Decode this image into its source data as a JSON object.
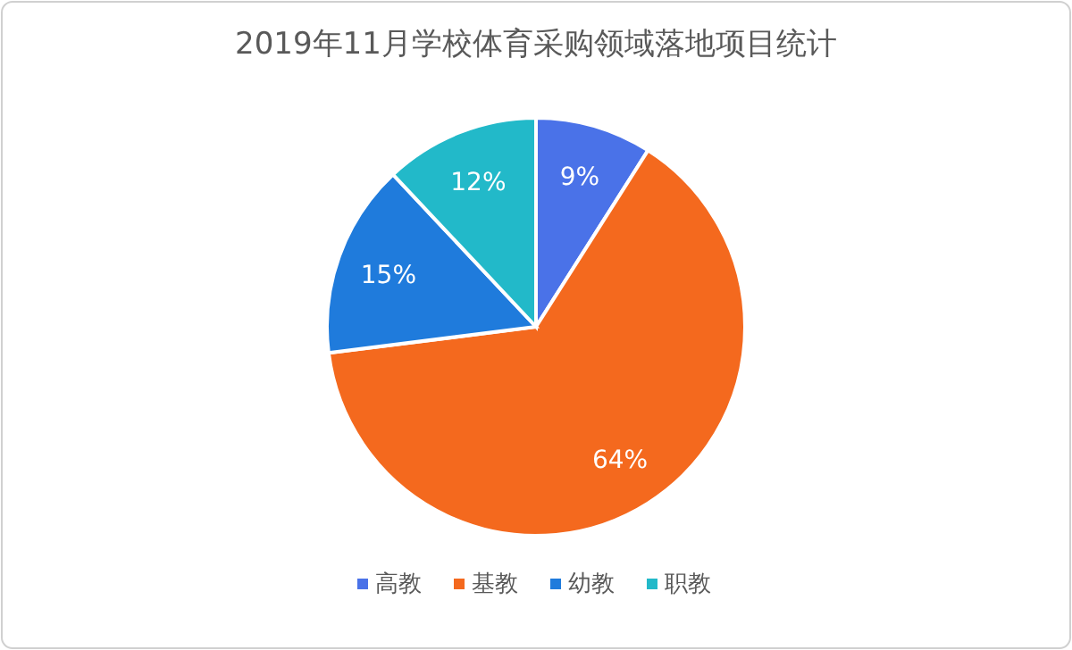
{
  "chart_data": {
    "type": "pie",
    "title": "2019年11月学校体育采购领域落地项目统计",
    "categories": [
      "高教",
      "基教",
      "幼教",
      "职教"
    ],
    "values": [
      9,
      64,
      15,
      12
    ],
    "colors": [
      "#4a72e8",
      "#f4691e",
      "#1f7bdc",
      "#22b9c9"
    ],
    "value_labels": [
      "9%",
      "64%",
      "15%",
      "12%"
    ],
    "legend": "bottom"
  }
}
